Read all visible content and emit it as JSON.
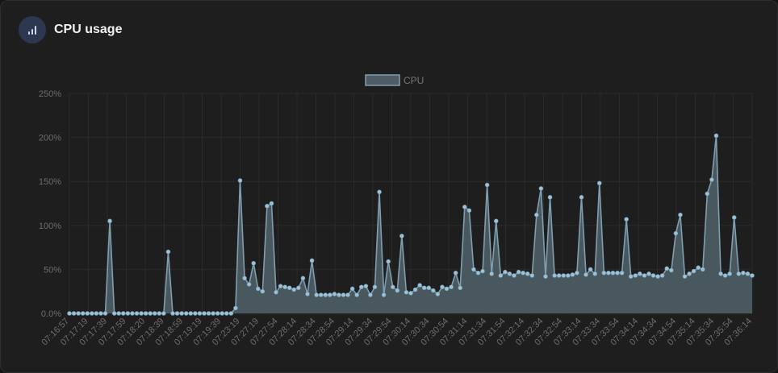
{
  "card": {
    "title": "CPU usage",
    "icon": "bar-chart-icon"
  },
  "colors": {
    "background": "#1e1e1f",
    "accent_icon_bg": "#2c3850",
    "line": "#7f9eaf",
    "fill": "#4e5d65",
    "point": "#9dc1d6",
    "grid": "#2a2a2b",
    "tick_text": "#6d6d6d"
  },
  "chart_data": {
    "type": "area",
    "legend": {
      "labels": [
        "CPU"
      ],
      "position": "top-center"
    },
    "ylim": [
      0,
      250
    ],
    "y_ticks": [
      "0.0%",
      "50%",
      "100%",
      "150%",
      "200%",
      "250%"
    ],
    "x_tick_labels": [
      "07:16:57",
      "07:17:19",
      "07:17:39",
      "07:17:59",
      "07:18:20",
      "07:18:39",
      "07:18:59",
      "07:19:19",
      "07:19:39",
      "07:23:19",
      "07:27:19",
      "07:27:54",
      "07:28:14",
      "07:28:34",
      "07:28:54",
      "07:29:14",
      "07:29:34",
      "07:29:54",
      "07:30:14",
      "07:30:34",
      "07:30:54",
      "07:31:14",
      "07:31:34",
      "07:31:54",
      "07:32:14",
      "07:32:34",
      "07:32:54",
      "07:33:14",
      "07:33:34",
      "07:33:54",
      "07:34:14",
      "07:34:34",
      "07:34:54",
      "07:35:14",
      "07:35:34",
      "07:35:54",
      "07:36:14"
    ],
    "grid": true,
    "series": [
      {
        "name": "CPU",
        "values": [
          0,
          0,
          0,
          0,
          0,
          0,
          0,
          0,
          0,
          105,
          0,
          0,
          0,
          0,
          0,
          0,
          0,
          0,
          0,
          0,
          0,
          0,
          70,
          0,
          0,
          0,
          0,
          0,
          0,
          0,
          0,
          0,
          0,
          0,
          0,
          0,
          0,
          6,
          151,
          40,
          33,
          57,
          28,
          25,
          122,
          125,
          24,
          31,
          30,
          29,
          27,
          29,
          40,
          22,
          60,
          21,
          21,
          21,
          21,
          22,
          21,
          21,
          21,
          28,
          21,
          30,
          31,
          21,
          30,
          138,
          21,
          59,
          30,
          26,
          88,
          24,
          23,
          27,
          32,
          29,
          29,
          26,
          22,
          30,
          28,
          30,
          46,
          29,
          121,
          117,
          50,
          46,
          48,
          146,
          45,
          105,
          43,
          47,
          45,
          43,
          47,
          46,
          45,
          43,
          112,
          142,
          42,
          132,
          43,
          43,
          43,
          43,
          44,
          46,
          132,
          44,
          50,
          45,
          148,
          46,
          46,
          46,
          46,
          46,
          107,
          42,
          43,
          45,
          43,
          45,
          43,
          42,
          43,
          51,
          49,
          91,
          112,
          42,
          45,
          48,
          52,
          50,
          136,
          152,
          202,
          45,
          43,
          45,
          109,
          45,
          46,
          45,
          43
        ]
      }
    ]
  }
}
